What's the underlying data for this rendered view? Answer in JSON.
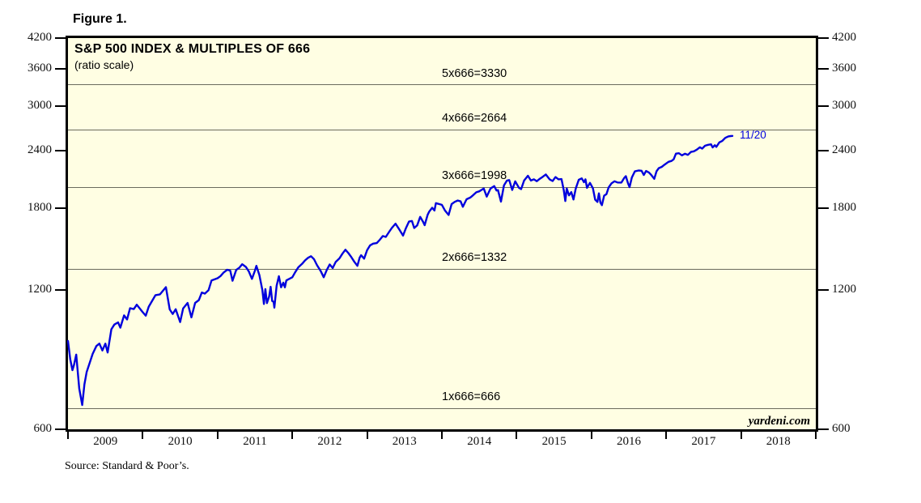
{
  "figure_label": "Figure 1.",
  "source_note": "Source: Standard & Poor’s.",
  "watermark": "yardeni.com",
  "colors": {
    "line_blue": "#0000dd",
    "plot_background": "#fffee3",
    "grid_line": "#6b6b5d",
    "border": "#000000"
  },
  "chart_data": {
    "type": "line",
    "title": "S&P 500 INDEX & MULTIPLES OF 666",
    "subtitle": "(ratio scale)",
    "scale": "log",
    "ylim": [
      600,
      4200
    ],
    "xlim": [
      2009,
      2019
    ],
    "y_ticks": [
      4200,
      3600,
      3000,
      2400,
      1800,
      1200,
      600
    ],
    "x_tick_years": [
      2009,
      2010,
      2011,
      2012,
      2013,
      2014,
      2015,
      2016,
      2017,
      2018
    ],
    "grid": "horizontal-reference-lines-only",
    "legend_position": "none",
    "reference_lines": [
      {
        "label": "5x666=3330",
        "value": 3330
      },
      {
        "label": "4x666=2664",
        "value": 2664
      },
      {
        "label": "3x666=1998",
        "value": 1998
      },
      {
        "label": "2x666=1332",
        "value": 1332
      },
      {
        "label": "1x666=666",
        "value": 666
      }
    ],
    "series": [
      {
        "name": "S&P 500 Index",
        "color": "#0000dd",
        "end_label": "11/20",
        "points": [
          [
            2009.0,
            931
          ],
          [
            2009.03,
            850
          ],
          [
            2009.06,
            805
          ],
          [
            2009.08,
            826
          ],
          [
            2009.11,
            870
          ],
          [
            2009.15,
            735
          ],
          [
            2009.19,
            677
          ],
          [
            2009.22,
            750
          ],
          [
            2009.25,
            798
          ],
          [
            2009.33,
            873
          ],
          [
            2009.38,
            908
          ],
          [
            2009.42,
            919
          ],
          [
            2009.46,
            888
          ],
          [
            2009.5,
            919
          ],
          [
            2009.53,
            879
          ],
          [
            2009.58,
            987
          ],
          [
            2009.62,
            1010
          ],
          [
            2009.67,
            1021
          ],
          [
            2009.7,
            995
          ],
          [
            2009.75,
            1057
          ],
          [
            2009.79,
            1036
          ],
          [
            2009.83,
            1096
          ],
          [
            2009.88,
            1091
          ],
          [
            2009.92,
            1115
          ],
          [
            2010.0,
            1074
          ],
          [
            2010.04,
            1056
          ],
          [
            2010.08,
            1104
          ],
          [
            2010.17,
            1169
          ],
          [
            2010.23,
            1174
          ],
          [
            2010.31,
            1217
          ],
          [
            2010.36,
            1089
          ],
          [
            2010.4,
            1065
          ],
          [
            2010.44,
            1090
          ],
          [
            2010.5,
            1023
          ],
          [
            2010.54,
            1095
          ],
          [
            2010.6,
            1125
          ],
          [
            2010.65,
            1047
          ],
          [
            2010.7,
            1125
          ],
          [
            2010.75,
            1141
          ],
          [
            2010.79,
            1185
          ],
          [
            2010.83,
            1178
          ],
          [
            2010.88,
            1199
          ],
          [
            2010.92,
            1258
          ],
          [
            2011.0,
            1272
          ],
          [
            2011.04,
            1286
          ],
          [
            2011.08,
            1308
          ],
          [
            2011.13,
            1327
          ],
          [
            2011.17,
            1321
          ],
          [
            2011.2,
            1256
          ],
          [
            2011.25,
            1326
          ],
          [
            2011.29,
            1340
          ],
          [
            2011.33,
            1364
          ],
          [
            2011.38,
            1345
          ],
          [
            2011.42,
            1314
          ],
          [
            2011.46,
            1268
          ],
          [
            2011.5,
            1321
          ],
          [
            2011.52,
            1353
          ],
          [
            2011.56,
            1292
          ],
          [
            2011.6,
            1199
          ],
          [
            2011.62,
            1119
          ],
          [
            2011.64,
            1205
          ],
          [
            2011.66,
            1124
          ],
          [
            2011.69,
            1162
          ],
          [
            2011.71,
            1219
          ],
          [
            2011.73,
            1136
          ],
          [
            2011.75,
            1131
          ],
          [
            2011.76,
            1099
          ],
          [
            2011.79,
            1225
          ],
          [
            2011.82,
            1285
          ],
          [
            2011.85,
            1216
          ],
          [
            2011.88,
            1244
          ],
          [
            2011.9,
            1216
          ],
          [
            2011.92,
            1258
          ],
          [
            2012.0,
            1278
          ],
          [
            2012.04,
            1312
          ],
          [
            2012.08,
            1343
          ],
          [
            2012.13,
            1366
          ],
          [
            2012.17,
            1390
          ],
          [
            2012.21,
            1408
          ],
          [
            2012.25,
            1419
          ],
          [
            2012.29,
            1398
          ],
          [
            2012.33,
            1357
          ],
          [
            2012.38,
            1318
          ],
          [
            2012.42,
            1278
          ],
          [
            2012.46,
            1325
          ],
          [
            2012.5,
            1362
          ],
          [
            2012.54,
            1338
          ],
          [
            2012.58,
            1379
          ],
          [
            2012.63,
            1404
          ],
          [
            2012.67,
            1437
          ],
          [
            2012.71,
            1466
          ],
          [
            2012.75,
            1441
          ],
          [
            2012.79,
            1412
          ],
          [
            2012.83,
            1380
          ],
          [
            2012.87,
            1353
          ],
          [
            2012.9,
            1409
          ],
          [
            2012.92,
            1426
          ],
          [
            2012.96,
            1402
          ],
          [
            2013.0,
            1462
          ],
          [
            2013.04,
            1498
          ],
          [
            2013.08,
            1511
          ],
          [
            2013.13,
            1515
          ],
          [
            2013.17,
            1540
          ],
          [
            2013.21,
            1569
          ],
          [
            2013.25,
            1562
          ],
          [
            2013.29,
            1598
          ],
          [
            2013.33,
            1633
          ],
          [
            2013.38,
            1669
          ],
          [
            2013.42,
            1631
          ],
          [
            2013.46,
            1592
          ],
          [
            2013.48,
            1573
          ],
          [
            2013.52,
            1632
          ],
          [
            2013.56,
            1686
          ],
          [
            2013.6,
            1691
          ],
          [
            2013.63,
            1633
          ],
          [
            2013.67,
            1655
          ],
          [
            2013.71,
            1726
          ],
          [
            2013.75,
            1682
          ],
          [
            2013.77,
            1656
          ],
          [
            2013.81,
            1744
          ],
          [
            2013.83,
            1771
          ],
          [
            2013.87,
            1806
          ],
          [
            2013.9,
            1781
          ],
          [
            2013.92,
            1848
          ],
          [
            2014.0,
            1832
          ],
          [
            2014.04,
            1783
          ],
          [
            2014.09,
            1742
          ],
          [
            2014.13,
            1839
          ],
          [
            2014.17,
            1859
          ],
          [
            2014.21,
            1872
          ],
          [
            2014.25,
            1865
          ],
          [
            2014.28,
            1815
          ],
          [
            2014.33,
            1884
          ],
          [
            2014.38,
            1900
          ],
          [
            2014.42,
            1924
          ],
          [
            2014.46,
            1950
          ],
          [
            2014.5,
            1960
          ],
          [
            2014.54,
            1978
          ],
          [
            2014.56,
            1988
          ],
          [
            2014.6,
            1909
          ],
          [
            2014.65,
            1988
          ],
          [
            2014.7,
            2011
          ],
          [
            2014.73,
            1968
          ],
          [
            2014.75,
            1972
          ],
          [
            2014.79,
            1862
          ],
          [
            2014.83,
            2018
          ],
          [
            2014.87,
            2068
          ],
          [
            2014.9,
            2073
          ],
          [
            2014.94,
            1973
          ],
          [
            2014.98,
            2059
          ],
          [
            2015.03,
            1995
          ],
          [
            2015.06,
            1981
          ],
          [
            2015.1,
            2068
          ],
          [
            2015.15,
            2117
          ],
          [
            2015.19,
            2068
          ],
          [
            2015.23,
            2080
          ],
          [
            2015.27,
            2061
          ],
          [
            2015.31,
            2086
          ],
          [
            2015.35,
            2107
          ],
          [
            2015.39,
            2131
          ],
          [
            2015.44,
            2080
          ],
          [
            2015.48,
            2063
          ],
          [
            2015.52,
            2104
          ],
          [
            2015.56,
            2080
          ],
          [
            2015.6,
            2083
          ],
          [
            2015.63,
            1971
          ],
          [
            2015.65,
            1867
          ],
          [
            2015.67,
            1988
          ],
          [
            2015.7,
            1921
          ],
          [
            2015.73,
            1952
          ],
          [
            2015.76,
            1882
          ],
          [
            2015.79,
            1987
          ],
          [
            2015.83,
            2075
          ],
          [
            2015.87,
            2090
          ],
          [
            2015.9,
            2050
          ],
          [
            2015.92,
            2080
          ],
          [
            2015.94,
            1994
          ],
          [
            2015.98,
            2044
          ],
          [
            2016.02,
            1990
          ],
          [
            2016.05,
            1880
          ],
          [
            2016.08,
            1859
          ],
          [
            2016.1,
            1940
          ],
          [
            2016.12,
            1852
          ],
          [
            2016.14,
            1829
          ],
          [
            2016.17,
            1918
          ],
          [
            2016.2,
            1932
          ],
          [
            2016.23,
            1999
          ],
          [
            2016.27,
            2040
          ],
          [
            2016.31,
            2060
          ],
          [
            2016.35,
            2048
          ],
          [
            2016.4,
            2047
          ],
          [
            2016.44,
            2097
          ],
          [
            2016.46,
            2113
          ],
          [
            2016.49,
            2037
          ],
          [
            2016.51,
            2001
          ],
          [
            2016.54,
            2099
          ],
          [
            2016.58,
            2164
          ],
          [
            2016.63,
            2174
          ],
          [
            2016.67,
            2171
          ],
          [
            2016.7,
            2126
          ],
          [
            2016.73,
            2168
          ],
          [
            2016.77,
            2151
          ],
          [
            2016.8,
            2126
          ],
          [
            2016.84,
            2085
          ],
          [
            2016.87,
            2165
          ],
          [
            2016.9,
            2199
          ],
          [
            2016.94,
            2213
          ],
          [
            2016.98,
            2239
          ],
          [
            2017.03,
            2269
          ],
          [
            2017.07,
            2279
          ],
          [
            2017.1,
            2298
          ],
          [
            2017.13,
            2364
          ],
          [
            2017.17,
            2368
          ],
          [
            2017.21,
            2344
          ],
          [
            2017.25,
            2363
          ],
          [
            2017.29,
            2349
          ],
          [
            2017.33,
            2384
          ],
          [
            2017.37,
            2391
          ],
          [
            2017.41,
            2412
          ],
          [
            2017.45,
            2440
          ],
          [
            2017.48,
            2423
          ],
          [
            2017.52,
            2459
          ],
          [
            2017.56,
            2470
          ],
          [
            2017.6,
            2476
          ],
          [
            2017.62,
            2438
          ],
          [
            2017.65,
            2465
          ],
          [
            2017.67,
            2444
          ],
          [
            2017.71,
            2500
          ],
          [
            2017.75,
            2519
          ],
          [
            2017.79,
            2557
          ],
          [
            2017.83,
            2575
          ],
          [
            2017.86,
            2579
          ],
          [
            2017.885,
            2582
          ]
        ]
      }
    ]
  }
}
